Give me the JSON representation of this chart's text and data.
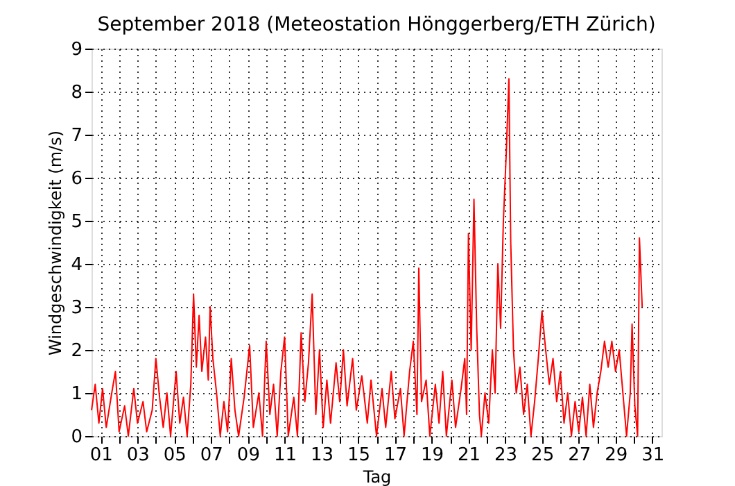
{
  "chart_data": {
    "type": "line",
    "title": "September 2018  (Meteostation Hönggerberg/ETH Zürich)",
    "xlabel": "Tag",
    "ylabel": "Windgeschwindigkeit (m/s)",
    "x": [
      0.5,
      0.7,
      0.9,
      1.1,
      1.3,
      1.6,
      1.8,
      2.0,
      2.3,
      2.5,
      2.8,
      3.0,
      3.3,
      3.5,
      3.8,
      4.0,
      4.2,
      4.4,
      4.6,
      4.8,
      5.1,
      5.3,
      5.5,
      5.7,
      5.9,
      6.05,
      6.2,
      6.35,
      6.5,
      6.7,
      6.85,
      6.95,
      7.1,
      7.3,
      7.5,
      7.7,
      7.9,
      8.1,
      8.3,
      8.5,
      8.8,
      9.1,
      9.3,
      9.6,
      9.8,
      10.0,
      10.2,
      10.4,
      10.6,
      10.8,
      11.0,
      11.2,
      11.5,
      11.7,
      11.9,
      12.1,
      12.3,
      12.5,
      12.7,
      12.9,
      13.1,
      13.3,
      13.5,
      13.8,
      14.0,
      14.2,
      14.4,
      14.7,
      14.9,
      15.2,
      15.5,
      15.7,
      16.0,
      16.3,
      16.5,
      16.8,
      17.0,
      17.3,
      17.5,
      17.8,
      18.0,
      18.2,
      18.3,
      18.45,
      18.7,
      18.9,
      19.2,
      19.4,
      19.6,
      19.8,
      20.1,
      20.3,
      20.6,
      20.8,
      20.9,
      21.0,
      21.15,
      21.3,
      21.45,
      21.6,
      21.7,
      21.9,
      22.1,
      22.3,
      22.45,
      22.6,
      22.75,
      22.9,
      23.05,
      23.2,
      23.3,
      23.45,
      23.6,
      23.8,
      24.0,
      24.2,
      24.4,
      24.6,
      24.8,
      25.0,
      25.2,
      25.4,
      25.6,
      25.8,
      26.0,
      26.2,
      26.4,
      26.6,
      26.8,
      27.0,
      27.2,
      27.4,
      27.6,
      27.8,
      28.0,
      28.2,
      28.4,
      28.6,
      28.8,
      29.0,
      29.2,
      29.4,
      29.6,
      29.8,
      29.9,
      30.05,
      30.2,
      30.3,
      30.45
    ],
    "series": [
      {
        "color": "#ff0000",
        "values": [
          0.6,
          1.2,
          0.3,
          1.1,
          0.2,
          1.0,
          1.5,
          0.1,
          0.7,
          0.0,
          1.1,
          0.3,
          0.8,
          0.1,
          0.6,
          1.8,
          0.9,
          0.2,
          1.0,
          0.0,
          1.5,
          0.3,
          0.9,
          0.0,
          1.2,
          3.3,
          1.6,
          2.8,
          1.5,
          2.3,
          1.3,
          3.0,
          1.8,
          1.0,
          0.0,
          0.8,
          0.1,
          1.8,
          0.6,
          0.0,
          0.9,
          2.1,
          0.2,
          1.0,
          0.0,
          2.2,
          0.5,
          1.2,
          0.0,
          1.5,
          2.3,
          0.0,
          0.9,
          0.0,
          2.4,
          0.8,
          1.7,
          3.3,
          0.5,
          2.0,
          0.2,
          1.3,
          0.3,
          1.7,
          0.8,
          2.0,
          0.7,
          1.8,
          0.6,
          1.4,
          0.3,
          1.3,
          0.0,
          1.1,
          0.2,
          1.5,
          0.4,
          1.1,
          0.0,
          1.5,
          2.2,
          0.5,
          3.9,
          0.8,
          1.3,
          0.0,
          1.2,
          0.3,
          1.5,
          0.0,
          1.3,
          0.2,
          1.1,
          1.8,
          0.5,
          4.7,
          2.0,
          5.5,
          2.5,
          0.5,
          0.0,
          1.0,
          0.3,
          2.0,
          1.0,
          4.0,
          2.5,
          5.0,
          6.5,
          8.3,
          4.5,
          2.0,
          1.0,
          1.6,
          0.5,
          1.2,
          0.0,
          0.8,
          1.8,
          2.9,
          2.0,
          1.2,
          1.8,
          0.8,
          1.5,
          0.3,
          1.0,
          0.0,
          0.8,
          0.1,
          0.9,
          0.0,
          1.2,
          0.2,
          1.0,
          1.5,
          2.2,
          1.6,
          2.2,
          1.5,
          2.0,
          1.0,
          0.0,
          1.0,
          2.6,
          0.7,
          0.0,
          4.6,
          3.0
        ]
      }
    ],
    "xlim": [
      0.5,
      31.5
    ],
    "xticks": [
      {
        "value": 1,
        "label": "01"
      },
      {
        "value": 2,
        "label": null
      },
      {
        "value": 3,
        "label": "03"
      },
      {
        "value": 4,
        "label": null
      },
      {
        "value": 5,
        "label": "05"
      },
      {
        "value": 6,
        "label": null
      },
      {
        "value": 7,
        "label": "07"
      },
      {
        "value": 8,
        "label": null
      },
      {
        "value": 9,
        "label": "09"
      },
      {
        "value": 10,
        "label": null
      },
      {
        "value": 11,
        "label": "11"
      },
      {
        "value": 12,
        "label": null
      },
      {
        "value": 13,
        "label": "13"
      },
      {
        "value": 14,
        "label": null
      },
      {
        "value": 15,
        "label": "15"
      },
      {
        "value": 16,
        "label": null
      },
      {
        "value": 17,
        "label": "17"
      },
      {
        "value": 18,
        "label": null
      },
      {
        "value": 19,
        "label": "19"
      },
      {
        "value": 20,
        "label": null
      },
      {
        "value": 21,
        "label": "21"
      },
      {
        "value": 22,
        "label": null
      },
      {
        "value": 23,
        "label": "23"
      },
      {
        "value": 24,
        "label": null
      },
      {
        "value": 25,
        "label": "25"
      },
      {
        "value": 26,
        "label": null
      },
      {
        "value": 27,
        "label": "27"
      },
      {
        "value": 28,
        "label": null
      },
      {
        "value": 29,
        "label": "29"
      },
      {
        "value": 30,
        "label": null
      },
      {
        "value": 31,
        "label": "31"
      }
    ],
    "ylim": [
      0,
      9
    ],
    "yticks": [
      0,
      1,
      2,
      3,
      4,
      5,
      6,
      7,
      8,
      9
    ],
    "grid": true,
    "line_style": "solid",
    "marker": "none"
  }
}
